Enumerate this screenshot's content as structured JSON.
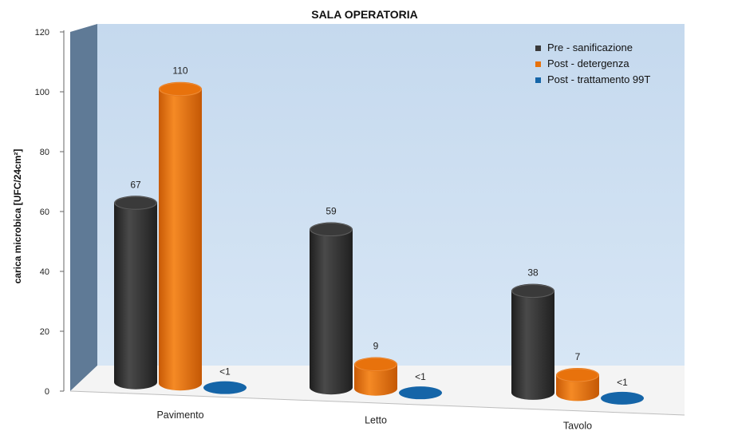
{
  "chart_data": {
    "type": "bar",
    "title": "SALA OPERATORIA",
    "xlabel": "",
    "ylabel": "carica microbica [UFC/24cm²]",
    "ylim": [
      0,
      120
    ],
    "yticks": [
      "0",
      "20",
      "40",
      "60",
      "80",
      "100",
      "120"
    ],
    "categories": [
      "Pavimento",
      "Letto",
      "Tavolo"
    ],
    "series": [
      {
        "name": "Pre - sanificazione",
        "values": [
          67,
          59,
          38
        ],
        "labels": [
          "67",
          "59",
          "38"
        ],
        "color": "#3a3a3a"
      },
      {
        "name": "Post - detergenza",
        "values": [
          110,
          9,
          7
        ],
        "labels": [
          "110",
          "9",
          "7"
        ],
        "color": "#e8720c"
      },
      {
        "name": "Post - trattamento 99T",
        "values": [
          0.5,
          0.5,
          0.5
        ],
        "labels": [
          "<1",
          "<1",
          "<1"
        ],
        "color": "#1565a8"
      }
    ],
    "legend_position": "top-right",
    "grid": false,
    "style": "3d-cylinder"
  }
}
